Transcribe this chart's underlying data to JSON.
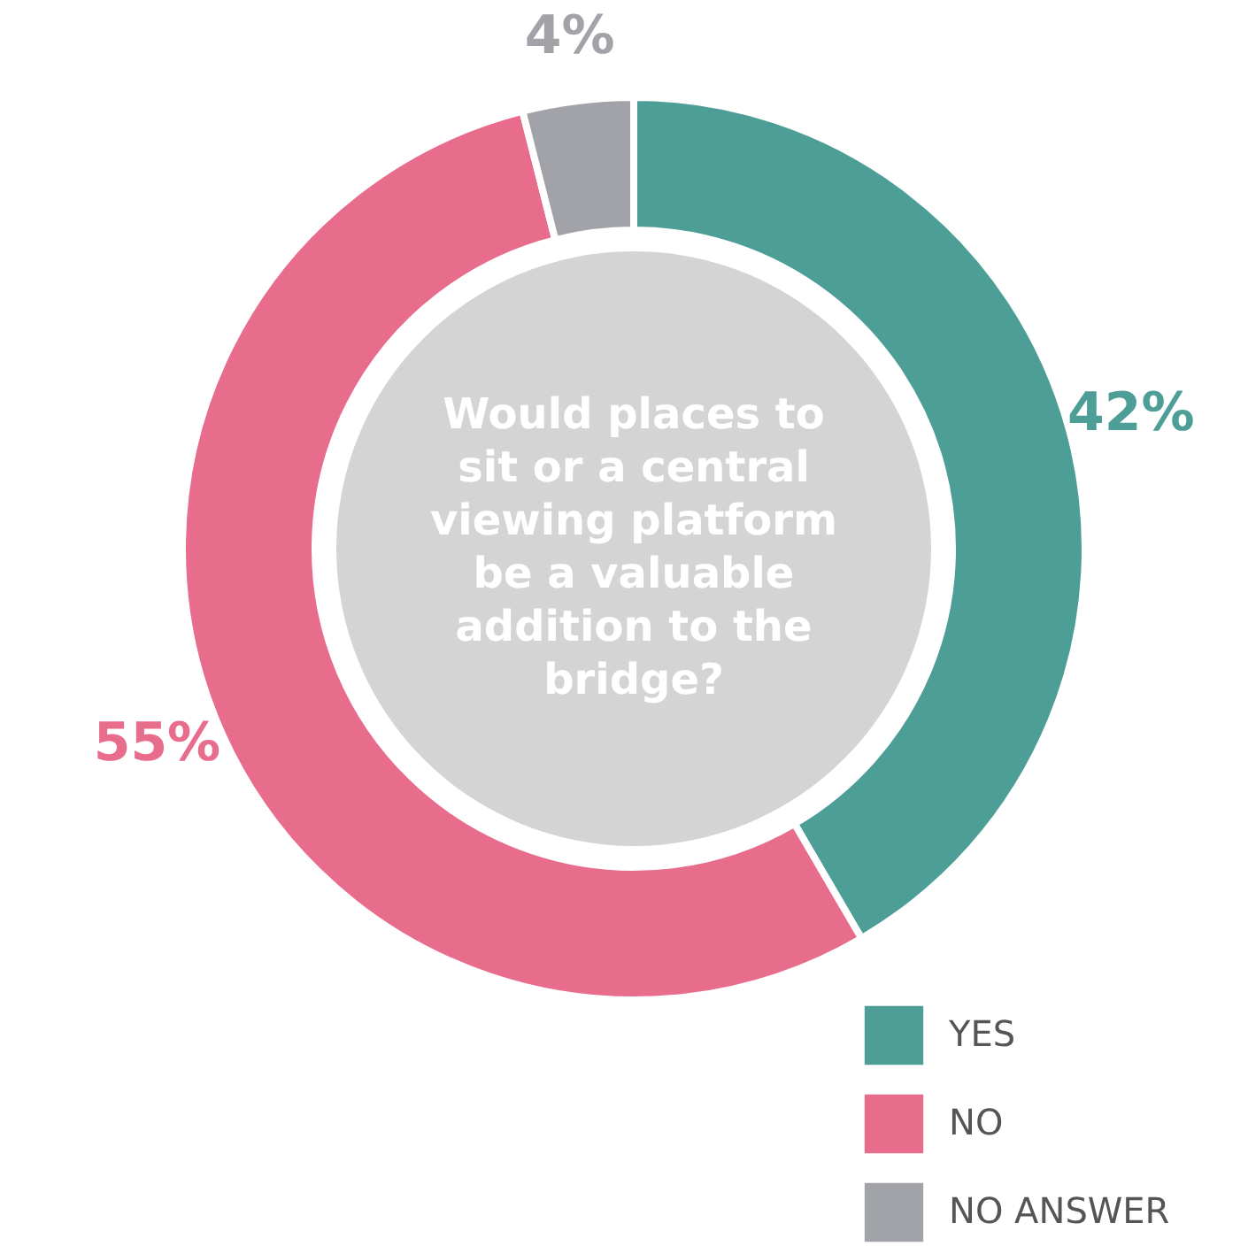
{
  "chart_data": {
    "type": "donut",
    "title": "Would places to\nsit or a central\nviewing platform\nbe a valuable\naddition to the\nbridge?",
    "categories": [
      "YES",
      "NO",
      "NO ANSWER"
    ],
    "values": [
      42,
      55,
      4
    ],
    "colors": [
      "#4e9e98",
      "#e86c8c",
      "#a2a3a8"
    ],
    "value_labels": [
      "42%",
      "55%",
      "4%"
    ],
    "legend": "bottom right"
  }
}
